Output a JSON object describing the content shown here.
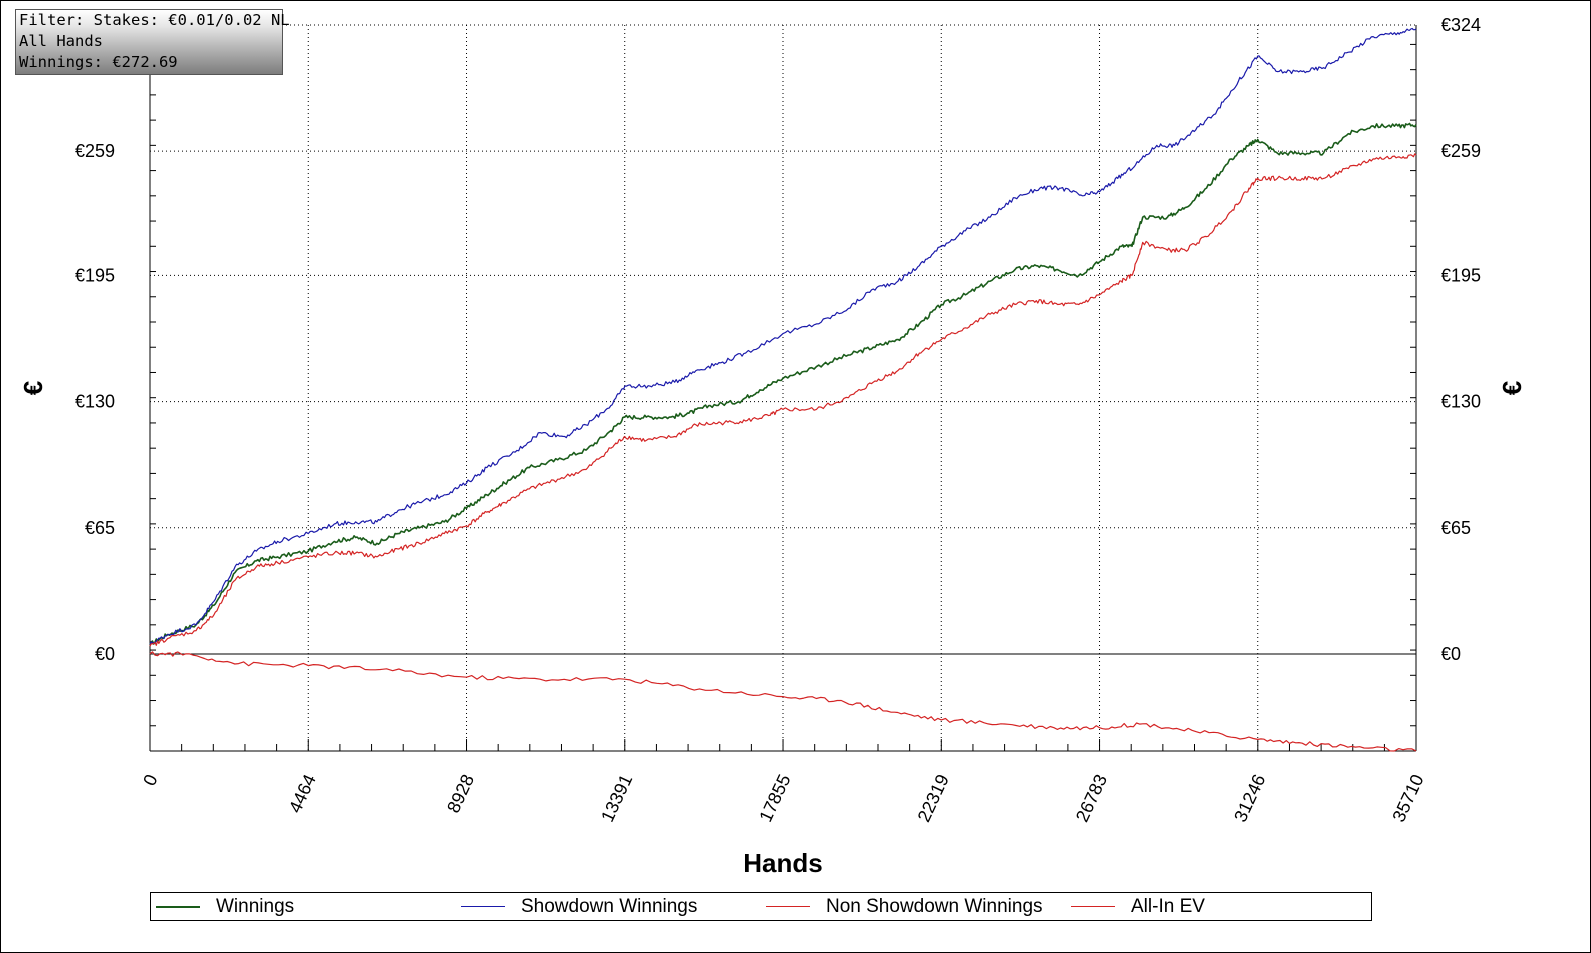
{
  "filter_box": {
    "line1": "Filter: Stakes: €0.01/0.02 NL",
    "line2": "All Hands",
    "line3": "Winnings: €272.69"
  },
  "chart_data": {
    "type": "line",
    "xlabel": "Hands",
    "ylabel": "€",
    "xlim": [
      0,
      35710
    ],
    "ylim": [
      -50,
      324
    ],
    "x_ticks": [
      "0",
      "4464",
      "8928",
      "13391",
      "17855",
      "22319",
      "26783",
      "31246",
      "35710"
    ],
    "x_tick_values": [
      0,
      4464,
      8928,
      13391,
      17855,
      22319,
      26783,
      31246,
      35710
    ],
    "y_ticks": [
      "€0",
      "€65",
      "€130",
      "€195",
      "€259",
      "€324"
    ],
    "y_tick_values": [
      0,
      65,
      130,
      195,
      259,
      324
    ],
    "grid": true,
    "legend_position": "bottom",
    "series": [
      {
        "name": "Winnings",
        "color": "#1a5c1a",
        "points": [
          [
            0,
            5
          ],
          [
            500,
            10
          ],
          [
            1300,
            15
          ],
          [
            1800,
            25
          ],
          [
            2400,
            42
          ],
          [
            3000,
            48
          ],
          [
            3600,
            50
          ],
          [
            4464,
            53
          ],
          [
            5200,
            58
          ],
          [
            5800,
            60
          ],
          [
            6400,
            57
          ],
          [
            7000,
            62
          ],
          [
            7600,
            65
          ],
          [
            8300,
            68
          ],
          [
            8928,
            75
          ],
          [
            9500,
            82
          ],
          [
            10000,
            88
          ],
          [
            10700,
            96
          ],
          [
            11500,
            100
          ],
          [
            12300,
            105
          ],
          [
            13000,
            115
          ],
          [
            13391,
            122
          ],
          [
            14000,
            122
          ],
          [
            14700,
            122
          ],
          [
            15200,
            124
          ],
          [
            15800,
            128
          ],
          [
            16600,
            130
          ],
          [
            17200,
            136
          ],
          [
            17855,
            142
          ],
          [
            18800,
            148
          ],
          [
            19700,
            154
          ],
          [
            20400,
            158
          ],
          [
            21100,
            162
          ],
          [
            21700,
            170
          ],
          [
            22319,
            180
          ],
          [
            23000,
            185
          ],
          [
            23700,
            192
          ],
          [
            24400,
            198
          ],
          [
            25000,
            200
          ],
          [
            25600,
            198
          ],
          [
            26200,
            195
          ],
          [
            26783,
            202
          ],
          [
            27400,
            210
          ],
          [
            27700,
            210
          ],
          [
            28000,
            225
          ],
          [
            28700,
            225
          ],
          [
            29200,
            230
          ],
          [
            29800,
            240
          ],
          [
            30500,
            255
          ],
          [
            31000,
            262
          ],
          [
            31246,
            265
          ],
          [
            31800,
            258
          ],
          [
            32500,
            258
          ],
          [
            33100,
            258
          ],
          [
            33800,
            268
          ],
          [
            34500,
            272
          ],
          [
            35200,
            272
          ],
          [
            35710,
            272.69
          ]
        ]
      },
      {
        "name": "Showdown Winnings",
        "color": "#1a1aaa",
        "points": [
          [
            0,
            5
          ],
          [
            500,
            10
          ],
          [
            1300,
            15
          ],
          [
            1800,
            27
          ],
          [
            2400,
            45
          ],
          [
            3000,
            53
          ],
          [
            3600,
            58
          ],
          [
            4464,
            62
          ],
          [
            5200,
            67
          ],
          [
            5800,
            68
          ],
          [
            6400,
            68
          ],
          [
            7000,
            74
          ],
          [
            7600,
            78
          ],
          [
            8300,
            82
          ],
          [
            8928,
            88
          ],
          [
            9500,
            96
          ],
          [
            10300,
            104
          ],
          [
            11000,
            114
          ],
          [
            11700,
            112
          ],
          [
            12300,
            118
          ],
          [
            13000,
            128
          ],
          [
            13391,
            138
          ],
          [
            14100,
            138
          ],
          [
            14800,
            140
          ],
          [
            15400,
            146
          ],
          [
            16100,
            150
          ],
          [
            16800,
            155
          ],
          [
            17855,
            165
          ],
          [
            18800,
            170
          ],
          [
            19700,
            178
          ],
          [
            20400,
            188
          ],
          [
            21100,
            192
          ],
          [
            21700,
            200
          ],
          [
            22319,
            210
          ],
          [
            23000,
            218
          ],
          [
            23700,
            225
          ],
          [
            24400,
            235
          ],
          [
            25100,
            240
          ],
          [
            25700,
            240
          ],
          [
            26300,
            236
          ],
          [
            26783,
            238
          ],
          [
            27300,
            245
          ],
          [
            27800,
            252
          ],
          [
            28400,
            262
          ],
          [
            28900,
            262
          ],
          [
            29500,
            270
          ],
          [
            30100,
            280
          ],
          [
            30700,
            295
          ],
          [
            31246,
            308
          ],
          [
            31800,
            300
          ],
          [
            32500,
            300
          ],
          [
            33100,
            302
          ],
          [
            33800,
            310
          ],
          [
            34500,
            318
          ],
          [
            35200,
            320
          ],
          [
            35710,
            322
          ]
        ]
      },
      {
        "name": "Non Showdown Winnings",
        "color": "#d42424",
        "points": [
          [
            0,
            4
          ],
          [
            500,
            8
          ],
          [
            1300,
            12
          ],
          [
            1800,
            20
          ],
          [
            2400,
            38
          ],
          [
            3000,
            45
          ],
          [
            3600,
            47
          ],
          [
            4464,
            50
          ],
          [
            5200,
            52
          ],
          [
            5800,
            52
          ],
          [
            6400,
            50
          ],
          [
            7000,
            54
          ],
          [
            7600,
            57
          ],
          [
            8300,
            62
          ],
          [
            8928,
            66
          ],
          [
            9500,
            73
          ],
          [
            10000,
            78
          ],
          [
            10700,
            85
          ],
          [
            11500,
            90
          ],
          [
            12300,
            95
          ],
          [
            13000,
            106
          ],
          [
            13391,
            112
          ],
          [
            14000,
            110
          ],
          [
            14800,
            112
          ],
          [
            15400,
            118
          ],
          [
            16100,
            119
          ],
          [
            16800,
            120
          ],
          [
            17500,
            123
          ],
          [
            17855,
            126
          ],
          [
            18800,
            126
          ],
          [
            19700,
            132
          ],
          [
            20400,
            140
          ],
          [
            21100,
            146
          ],
          [
            21700,
            155
          ],
          [
            22319,
            162
          ],
          [
            23000,
            168
          ],
          [
            23700,
            175
          ],
          [
            24400,
            180
          ],
          [
            25000,
            182
          ],
          [
            25600,
            180
          ],
          [
            26200,
            180
          ],
          [
            26783,
            185
          ],
          [
            27400,
            192
          ],
          [
            27700,
            195
          ],
          [
            28000,
            212
          ],
          [
            28700,
            208
          ],
          [
            29200,
            208
          ],
          [
            29800,
            215
          ],
          [
            30500,
            228
          ],
          [
            31000,
            240
          ],
          [
            31246,
            245
          ],
          [
            31800,
            245
          ],
          [
            32500,
            245
          ],
          [
            33100,
            245
          ],
          [
            33800,
            250
          ],
          [
            34500,
            255
          ],
          [
            35200,
            256
          ],
          [
            35710,
            257
          ]
        ]
      },
      {
        "name": "All-In EV",
        "color": "#d42424",
        "points": [
          [
            0,
            0
          ],
          [
            1000,
            0
          ],
          [
            2500,
            -5
          ],
          [
            4464,
            -6
          ],
          [
            6500,
            -8
          ],
          [
            8928,
            -12
          ],
          [
            11000,
            -13
          ],
          [
            13391,
            -13
          ],
          [
            15500,
            -18
          ],
          [
            17855,
            -22
          ],
          [
            19500,
            -24
          ],
          [
            21000,
            -30
          ],
          [
            22319,
            -34
          ],
          [
            24000,
            -36
          ],
          [
            25500,
            -38
          ],
          [
            26783,
            -38
          ],
          [
            28000,
            -36
          ],
          [
            29500,
            -40
          ],
          [
            31246,
            -44
          ],
          [
            32500,
            -46
          ],
          [
            34000,
            -48
          ],
          [
            35710,
            -50
          ]
        ]
      }
    ]
  }
}
